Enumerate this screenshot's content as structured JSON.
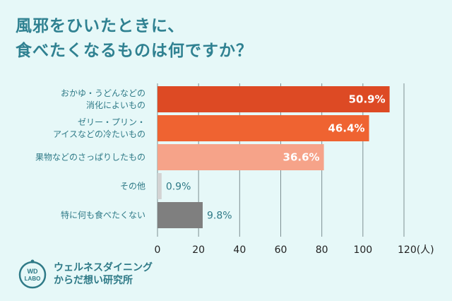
{
  "title": {
    "line1": "風邪をひいたときに、",
    "line2": "食べたくなるものは何ですか？"
  },
  "brand": {
    "logo_line1": "WD",
    "logo_line2": "LABO",
    "name_line1": "ウェルネスダイニング",
    "name_line2": "からだ想い研究所"
  },
  "chart_data": {
    "type": "bar",
    "orientation": "horizontal",
    "categories": [
      [
        "おかゆ・うどんなどの",
        "消化によいもの"
      ],
      [
        "ゼリー・プリン・",
        "アイスなどの冷たいもの"
      ],
      [
        "果物などのさっぱりしたもの"
      ],
      [
        "その他"
      ],
      [
        "特に何も食べたくない"
      ]
    ],
    "values": [
      113,
      103,
      81,
      2,
      22
    ],
    "percent_labels": [
      "50.9%",
      "46.4%",
      "36.6%",
      "0.9%",
      "9.8%"
    ],
    "colors": [
      "#dd4a24",
      "#ef6331",
      "#f6a389",
      "#d3d3d3",
      "#7f7f7f"
    ],
    "label_inside": [
      true,
      true,
      true,
      false,
      false
    ],
    "xlim": [
      0,
      120
    ],
    "xticks": [
      "0",
      "20",
      "40",
      "60",
      "80",
      "100",
      "120(人)"
    ],
    "grid": true
  }
}
